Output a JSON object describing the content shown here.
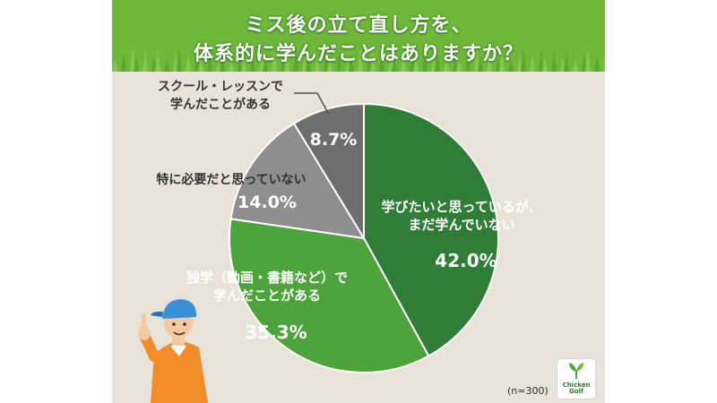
{
  "title": {
    "line1": "ミス後の立て直し方を、",
    "line2": "体系的に学んだことはありますか？"
  },
  "colors": {
    "header_green": "#6fb83a",
    "panel_bg": "#e8e3d8"
  },
  "chart_data": {
    "type": "pie",
    "start_angle_deg": 0,
    "direction": "clockwise",
    "slices": [
      {
        "label_lines": [
          "学びたいと思っているが、",
          "まだ学んでいない"
        ],
        "value": 42.0,
        "value_text": "42.0%",
        "color": "#2f7d36",
        "text_color": "#ffffff"
      },
      {
        "label_lines": [
          "独学（動画・書籍など）で",
          "学んだことがある"
        ],
        "value": 35.3,
        "value_text": "35.3%",
        "color": "#4ea43c",
        "text_color": "#ffffff"
      },
      {
        "label_lines": [
          "特に必要だと思っていない"
        ],
        "value": 14.0,
        "value_text": "14.0%",
        "color": "#8e8e8e",
        "text_color": "#ffffff"
      },
      {
        "label_lines": [
          "スクール・レッスンで",
          "学んだことがある"
        ],
        "value": 8.7,
        "value_text": "8.7%",
        "color": "#6e6e6e",
        "text_color": "#333333"
      }
    ],
    "note": "(n=300)"
  },
  "logo": {
    "text_lines": [
      "Chicken",
      "Golf"
    ]
  }
}
